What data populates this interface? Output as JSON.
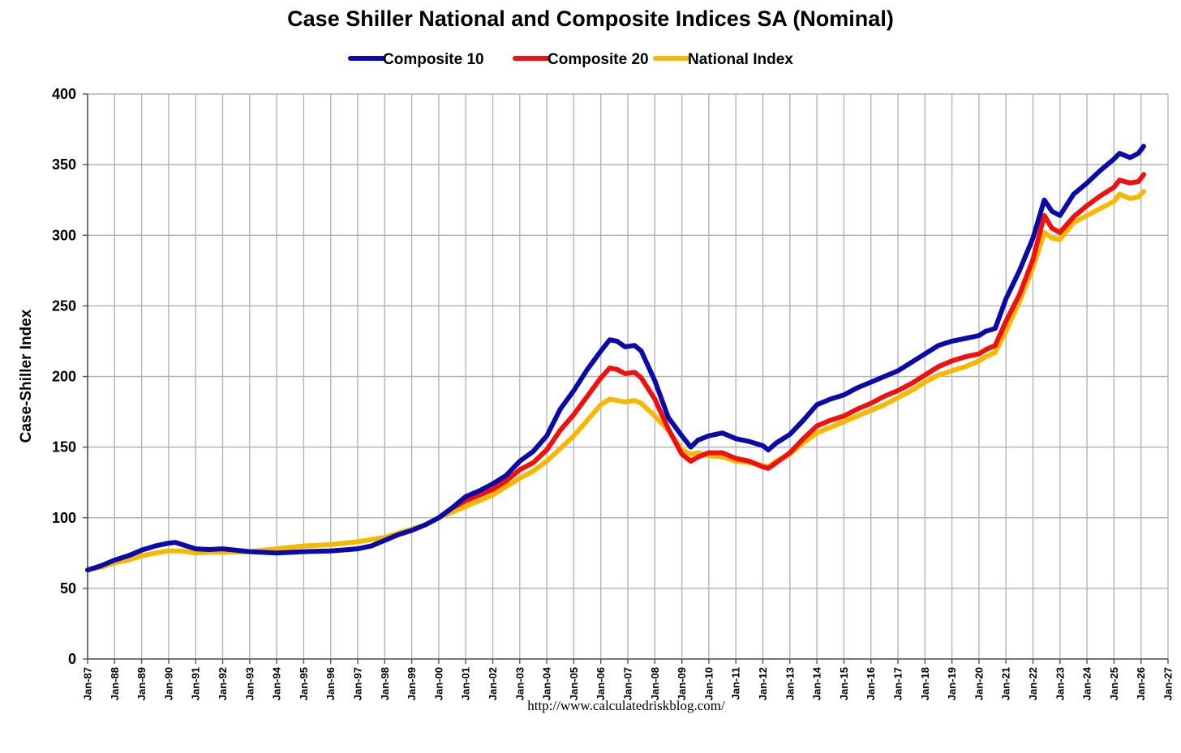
{
  "chart_data": {
    "type": "line",
    "title": "Case Shiller National and Composite Indices SA (Nominal)",
    "ylabel": "Case-Shiller Index",
    "xlabel": "",
    "source": "http://www.calculatedriskblog.com/",
    "ylim": [
      0,
      400
    ],
    "yticks": [
      0,
      50,
      100,
      150,
      200,
      250,
      300,
      350,
      400
    ],
    "xlim": [
      1987,
      2027
    ],
    "xtick_labels": [
      "Jan-87",
      "Jan-88",
      "Jan-89",
      "Jan-90",
      "Jan-91",
      "Jan-92",
      "Jan-93",
      "Jan-94",
      "Jan-95",
      "Jan-96",
      "Jan-97",
      "Jan-98",
      "Jan-99",
      "Jan-00",
      "Jan-01",
      "Jan-02",
      "Jan-03",
      "Jan-04",
      "Jan-05",
      "Jan-06",
      "Jan-07",
      "Jan-08",
      "Jan-09",
      "Jan-10",
      "Jan-11",
      "Jan-12",
      "Jan-13",
      "Jan-14",
      "Jan-15",
      "Jan-16",
      "Jan-17",
      "Jan-18",
      "Jan-19",
      "Jan-20",
      "Jan-21",
      "Jan-22",
      "Jan-23",
      "Jan-24",
      "Jan-25",
      "Jan-26",
      "Jan-27"
    ],
    "grid": true,
    "legend_position": "top",
    "series": [
      {
        "name": "Composite 10",
        "color": "#0a0aa8",
        "points": [
          [
            1987.0,
            63
          ],
          [
            1987.5,
            66
          ],
          [
            1988.0,
            70
          ],
          [
            1988.5,
            73
          ],
          [
            1989.0,
            77
          ],
          [
            1989.5,
            80
          ],
          [
            1990.0,
            82
          ],
          [
            1990.25,
            82.5
          ],
          [
            1990.5,
            81
          ],
          [
            1991.0,
            78
          ],
          [
            1991.5,
            77.5
          ],
          [
            1992.0,
            78
          ],
          [
            1992.5,
            77
          ],
          [
            1993.0,
            76
          ],
          [
            1994.0,
            75
          ],
          [
            1995.0,
            76
          ],
          [
            1996.0,
            76.5
          ],
          [
            1997.0,
            78
          ],
          [
            1997.5,
            80
          ],
          [
            1998.0,
            84
          ],
          [
            1998.5,
            88
          ],
          [
            1999.0,
            91
          ],
          [
            1999.5,
            95
          ],
          [
            2000.0,
            100
          ],
          [
            2000.5,
            107
          ],
          [
            2001.0,
            115
          ],
          [
            2001.5,
            119
          ],
          [
            2002.0,
            124
          ],
          [
            2002.5,
            130
          ],
          [
            2003.0,
            140
          ],
          [
            2003.5,
            147
          ],
          [
            2004.0,
            158
          ],
          [
            2004.5,
            177
          ],
          [
            2005.0,
            190
          ],
          [
            2005.5,
            205
          ],
          [
            2006.0,
            218
          ],
          [
            2006.33,
            226
          ],
          [
            2006.6,
            225
          ],
          [
            2006.9,
            221
          ],
          [
            2007.25,
            222
          ],
          [
            2007.5,
            218
          ],
          [
            2008.0,
            197
          ],
          [
            2008.5,
            171
          ],
          [
            2009.0,
            158
          ],
          [
            2009.33,
            150
          ],
          [
            2009.6,
            155
          ],
          [
            2010.0,
            158
          ],
          [
            2010.5,
            160
          ],
          [
            2011.0,
            156
          ],
          [
            2011.5,
            154
          ],
          [
            2012.0,
            151
          ],
          [
            2012.2,
            148
          ],
          [
            2012.5,
            153
          ],
          [
            2013.0,
            159
          ],
          [
            2013.5,
            169
          ],
          [
            2014.0,
            180
          ],
          [
            2014.5,
            184
          ],
          [
            2015.0,
            187
          ],
          [
            2015.5,
            192
          ],
          [
            2016.0,
            196
          ],
          [
            2016.5,
            200
          ],
          [
            2017.0,
            204
          ],
          [
            2017.5,
            210
          ],
          [
            2018.0,
            216
          ],
          [
            2018.5,
            222
          ],
          [
            2019.0,
            225
          ],
          [
            2019.5,
            227
          ],
          [
            2020.0,
            229
          ],
          [
            2020.25,
            232
          ],
          [
            2020.6,
            234
          ],
          [
            2021.0,
            255
          ],
          [
            2021.5,
            275
          ],
          [
            2022.0,
            298
          ],
          [
            2022.42,
            325
          ],
          [
            2022.7,
            317
          ],
          [
            2023.0,
            314
          ],
          [
            2023.5,
            329
          ],
          [
            2024.0,
            337
          ],
          [
            2024.5,
            346
          ],
          [
            2025.0,
            354
          ],
          [
            2025.2,
            358
          ],
          [
            2025.6,
            355
          ],
          [
            2025.9,
            358
          ],
          [
            2026.1,
            363
          ]
        ]
      },
      {
        "name": "Composite 20",
        "color": "#f01010",
        "points": [
          [
            2000.0,
            100
          ],
          [
            2000.5,
            107
          ],
          [
            2001.0,
            112
          ],
          [
            2001.5,
            116
          ],
          [
            2002.0,
            120
          ],
          [
            2002.5,
            126
          ],
          [
            2003.0,
            134
          ],
          [
            2003.5,
            139
          ],
          [
            2004.0,
            148
          ],
          [
            2004.5,
            162
          ],
          [
            2005.0,
            173
          ],
          [
            2005.5,
            186
          ],
          [
            2006.0,
            199
          ],
          [
            2006.33,
            206
          ],
          [
            2006.6,
            205
          ],
          [
            2006.9,
            202
          ],
          [
            2007.25,
            203
          ],
          [
            2007.5,
            199
          ],
          [
            2008.0,
            184
          ],
          [
            2008.5,
            163
          ],
          [
            2009.0,
            145
          ],
          [
            2009.33,
            140
          ],
          [
            2009.6,
            143
          ],
          [
            2010.0,
            146
          ],
          [
            2010.5,
            146
          ],
          [
            2011.0,
            142
          ],
          [
            2011.5,
            140
          ],
          [
            2012.0,
            136
          ],
          [
            2012.2,
            135
          ],
          [
            2012.5,
            139
          ],
          [
            2013.0,
            146
          ],
          [
            2013.5,
            156
          ],
          [
            2014.0,
            165
          ],
          [
            2014.5,
            169
          ],
          [
            2015.0,
            172
          ],
          [
            2015.5,
            177
          ],
          [
            2016.0,
            181
          ],
          [
            2016.5,
            186
          ],
          [
            2017.0,
            190
          ],
          [
            2017.5,
            195
          ],
          [
            2018.0,
            201
          ],
          [
            2018.5,
            207
          ],
          [
            2019.0,
            211
          ],
          [
            2019.5,
            214
          ],
          [
            2020.0,
            216
          ],
          [
            2020.25,
            219
          ],
          [
            2020.6,
            222
          ],
          [
            2021.0,
            239
          ],
          [
            2021.5,
            258
          ],
          [
            2022.0,
            283
          ],
          [
            2022.42,
            314
          ],
          [
            2022.7,
            305
          ],
          [
            2023.0,
            302
          ],
          [
            2023.5,
            313
          ],
          [
            2024.0,
            321
          ],
          [
            2024.5,
            328
          ],
          [
            2025.0,
            334
          ],
          [
            2025.2,
            339
          ],
          [
            2025.6,
            337
          ],
          [
            2025.9,
            338
          ],
          [
            2026.1,
            343
          ]
        ]
      },
      {
        "name": "National Index",
        "color": "#f7b800",
        "points": [
          [
            1987.0,
            63
          ],
          [
            1987.5,
            65
          ],
          [
            1988.0,
            68
          ],
          [
            1988.5,
            70
          ],
          [
            1989.0,
            73
          ],
          [
            1989.5,
            75
          ],
          [
            1990.0,
            76.5
          ],
          [
            1990.5,
            76.5
          ],
          [
            1991.0,
            75
          ],
          [
            1991.5,
            75.5
          ],
          [
            1992.0,
            75.5
          ],
          [
            1993.0,
            76
          ],
          [
            1994.0,
            78
          ],
          [
            1995.0,
            80
          ],
          [
            1996.0,
            81
          ],
          [
            1997.0,
            83
          ],
          [
            1998.0,
            86
          ],
          [
            1998.5,
            89
          ],
          [
            1999.0,
            92
          ],
          [
            1999.5,
            95
          ],
          [
            2000.0,
            100
          ],
          [
            2000.5,
            104
          ],
          [
            2001.0,
            108
          ],
          [
            2001.5,
            112
          ],
          [
            2002.0,
            116
          ],
          [
            2002.5,
            122
          ],
          [
            2003.0,
            128
          ],
          [
            2003.5,
            133
          ],
          [
            2004.0,
            140
          ],
          [
            2004.5,
            149
          ],
          [
            2005.0,
            158
          ],
          [
            2005.5,
            169
          ],
          [
            2006.0,
            180
          ],
          [
            2006.33,
            184
          ],
          [
            2006.6,
            183
          ],
          [
            2006.9,
            182
          ],
          [
            2007.25,
            183
          ],
          [
            2007.5,
            181
          ],
          [
            2008.0,
            172
          ],
          [
            2008.5,
            162
          ],
          [
            2009.0,
            148
          ],
          [
            2009.33,
            145
          ],
          [
            2009.6,
            146
          ],
          [
            2010.0,
            144
          ],
          [
            2010.5,
            143
          ],
          [
            2011.0,
            140
          ],
          [
            2011.5,
            139
          ],
          [
            2012.0,
            137
          ],
          [
            2012.2,
            136
          ],
          [
            2012.5,
            140
          ],
          [
            2013.0,
            145
          ],
          [
            2013.5,
            153
          ],
          [
            2014.0,
            160
          ],
          [
            2014.5,
            164
          ],
          [
            2015.0,
            168
          ],
          [
            2015.5,
            172
          ],
          [
            2016.0,
            176
          ],
          [
            2016.5,
            180
          ],
          [
            2017.0,
            185
          ],
          [
            2017.5,
            190
          ],
          [
            2018.0,
            196
          ],
          [
            2018.5,
            201
          ],
          [
            2019.0,
            204
          ],
          [
            2019.5,
            207
          ],
          [
            2020.0,
            211
          ],
          [
            2020.25,
            214
          ],
          [
            2020.6,
            217
          ],
          [
            2021.0,
            232
          ],
          [
            2021.5,
            253
          ],
          [
            2022.0,
            277
          ],
          [
            2022.42,
            302
          ],
          [
            2022.7,
            298
          ],
          [
            2023.0,
            297
          ],
          [
            2023.5,
            309
          ],
          [
            2024.0,
            314
          ],
          [
            2024.5,
            319
          ],
          [
            2025.0,
            324
          ],
          [
            2025.2,
            329
          ],
          [
            2025.6,
            326
          ],
          [
            2025.9,
            327
          ],
          [
            2026.1,
            331
          ]
        ]
      }
    ]
  }
}
